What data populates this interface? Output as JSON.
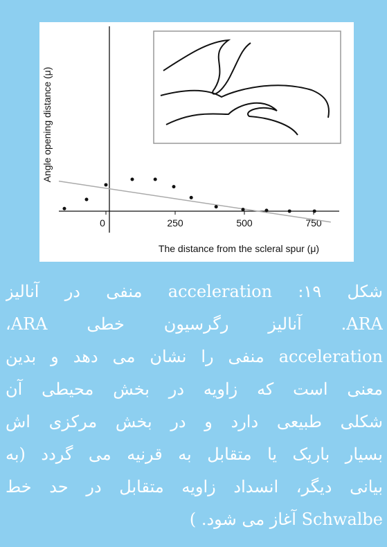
{
  "chart_data": {
    "type": "scatter",
    "y_label": "Angle opening distance (μ)",
    "x_label": "The distance from the scleral spur (μ)",
    "x": [
      -150,
      -70,
      0,
      95,
      178,
      245,
      308,
      398,
      495,
      580,
      663,
      753
    ],
    "values": [
      1,
      6,
      14,
      17,
      17,
      13,
      7,
      2,
      0.5,
      0,
      -0.4,
      -0.4
    ],
    "color": "#111111",
    "trendline": {
      "x": [
        -170,
        812
      ],
      "y": [
        16,
        -6.4
      ],
      "color": "#aaaaaa"
    },
    "xlim": [
      -170,
      840
    ],
    "ylim": [
      -8,
      100
    ],
    "xticks": [
      0,
      250,
      500,
      750
    ]
  },
  "caption": [
    "شکل ۱۹: acceleration منفی در آنالیز",
    "ARA. آنالیز رگرسیون خطی ARA،",
    "acceleration منفی را نشان می دهد و بدین",
    "معنی است که زاویه در بخش محیطی آن",
    "شکلی طبیعی دارد و در بخش مرکزی اش",
    "بسیار باریک یا متقابل به قرنیه می گردد (به",
    "بیانی دیگر، انسداد زاویه متقابل در حد خط",
    "Schwalbe آغاز می شود. )"
  ]
}
